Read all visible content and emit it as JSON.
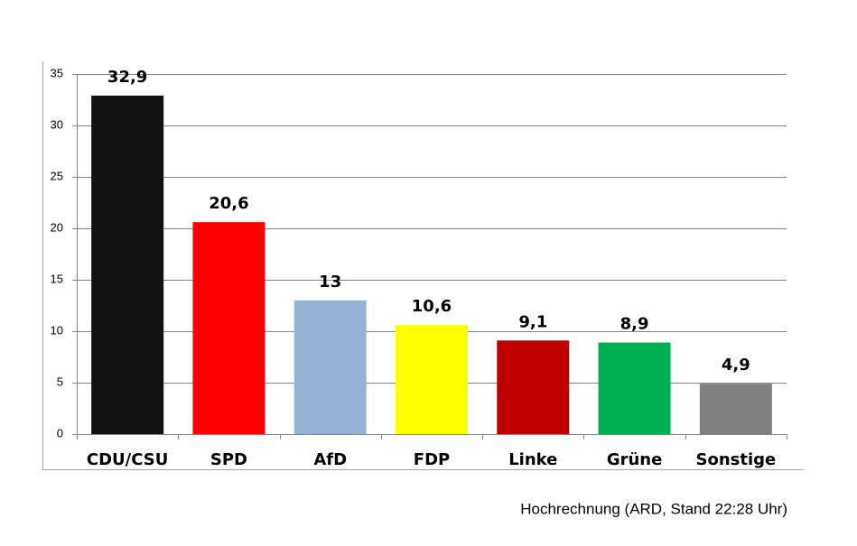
{
  "chart_data": {
    "type": "bar",
    "categories": [
      "CDU/CSU",
      "SPD",
      "AfD",
      "FDP",
      "Linke",
      "Grüne",
      "Sonstige"
    ],
    "values": [
      32.9,
      20.6,
      13,
      10.6,
      9.1,
      8.9,
      4.9
    ],
    "value_labels": [
      "32,9",
      "20,6",
      "13",
      "10,6",
      "9,1",
      "8,9",
      "4,9"
    ],
    "colors": [
      "#111111",
      "#ff0000",
      "#95b3d7",
      "#ffff00",
      "#c00000",
      "#00b050",
      "#808080"
    ],
    "ylim": [
      0,
      35
    ],
    "yticks": [
      0,
      5,
      10,
      15,
      20,
      25,
      30,
      35
    ],
    "grid": true,
    "caption": "Hochrechnung (ARD, Stand 22:28 Uhr)"
  }
}
